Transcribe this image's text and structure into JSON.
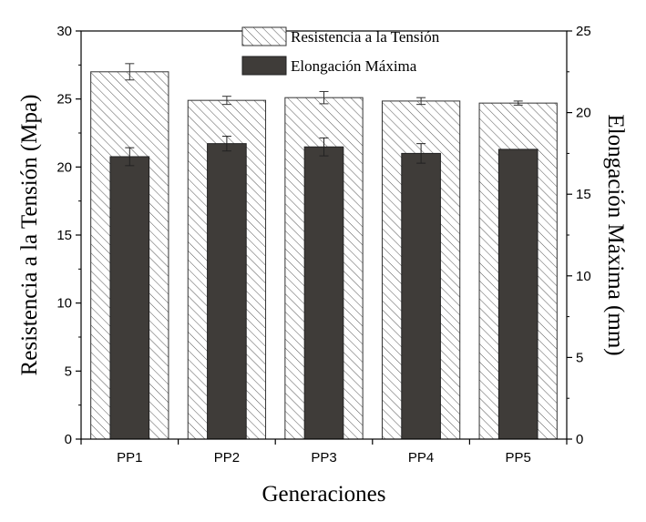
{
  "chart_data": {
    "type": "bar",
    "categories": [
      "PP1",
      "PP2",
      "PP3",
      "PP4",
      "PP5"
    ],
    "xlabel": "Generaciones",
    "ylabel_left": "Resistencia a la Tensión (Mpa)",
    "ylabel_right": "Elongación Máxima (mm)",
    "ylim_left": [
      0,
      30
    ],
    "ylim_right": [
      0,
      25
    ],
    "yticks_left": [
      "0",
      "5",
      "10",
      "15",
      "20",
      "25",
      "30"
    ],
    "yticks_right": [
      "0",
      "5",
      "10",
      "15",
      "20",
      "25"
    ],
    "legend_placement": "top-center",
    "grid": false,
    "series": [
      {
        "name": "Resistencia a la Tensión",
        "axis": "left",
        "pattern": "diagonal-hatch",
        "color": "#ffffff",
        "values": [
          27.0,
          24.9,
          25.1,
          24.85,
          24.7
        ],
        "errors": [
          0.6,
          0.3,
          0.45,
          0.25,
          0.15
        ]
      },
      {
        "name": "Elongación Máxima",
        "axis": "right",
        "pattern": "solid",
        "color": "#3f3c39",
        "values": [
          17.3,
          18.1,
          17.9,
          17.5,
          17.75
        ],
        "errors": [
          0.55,
          0.45,
          0.55,
          0.6,
          0.0
        ]
      }
    ]
  }
}
